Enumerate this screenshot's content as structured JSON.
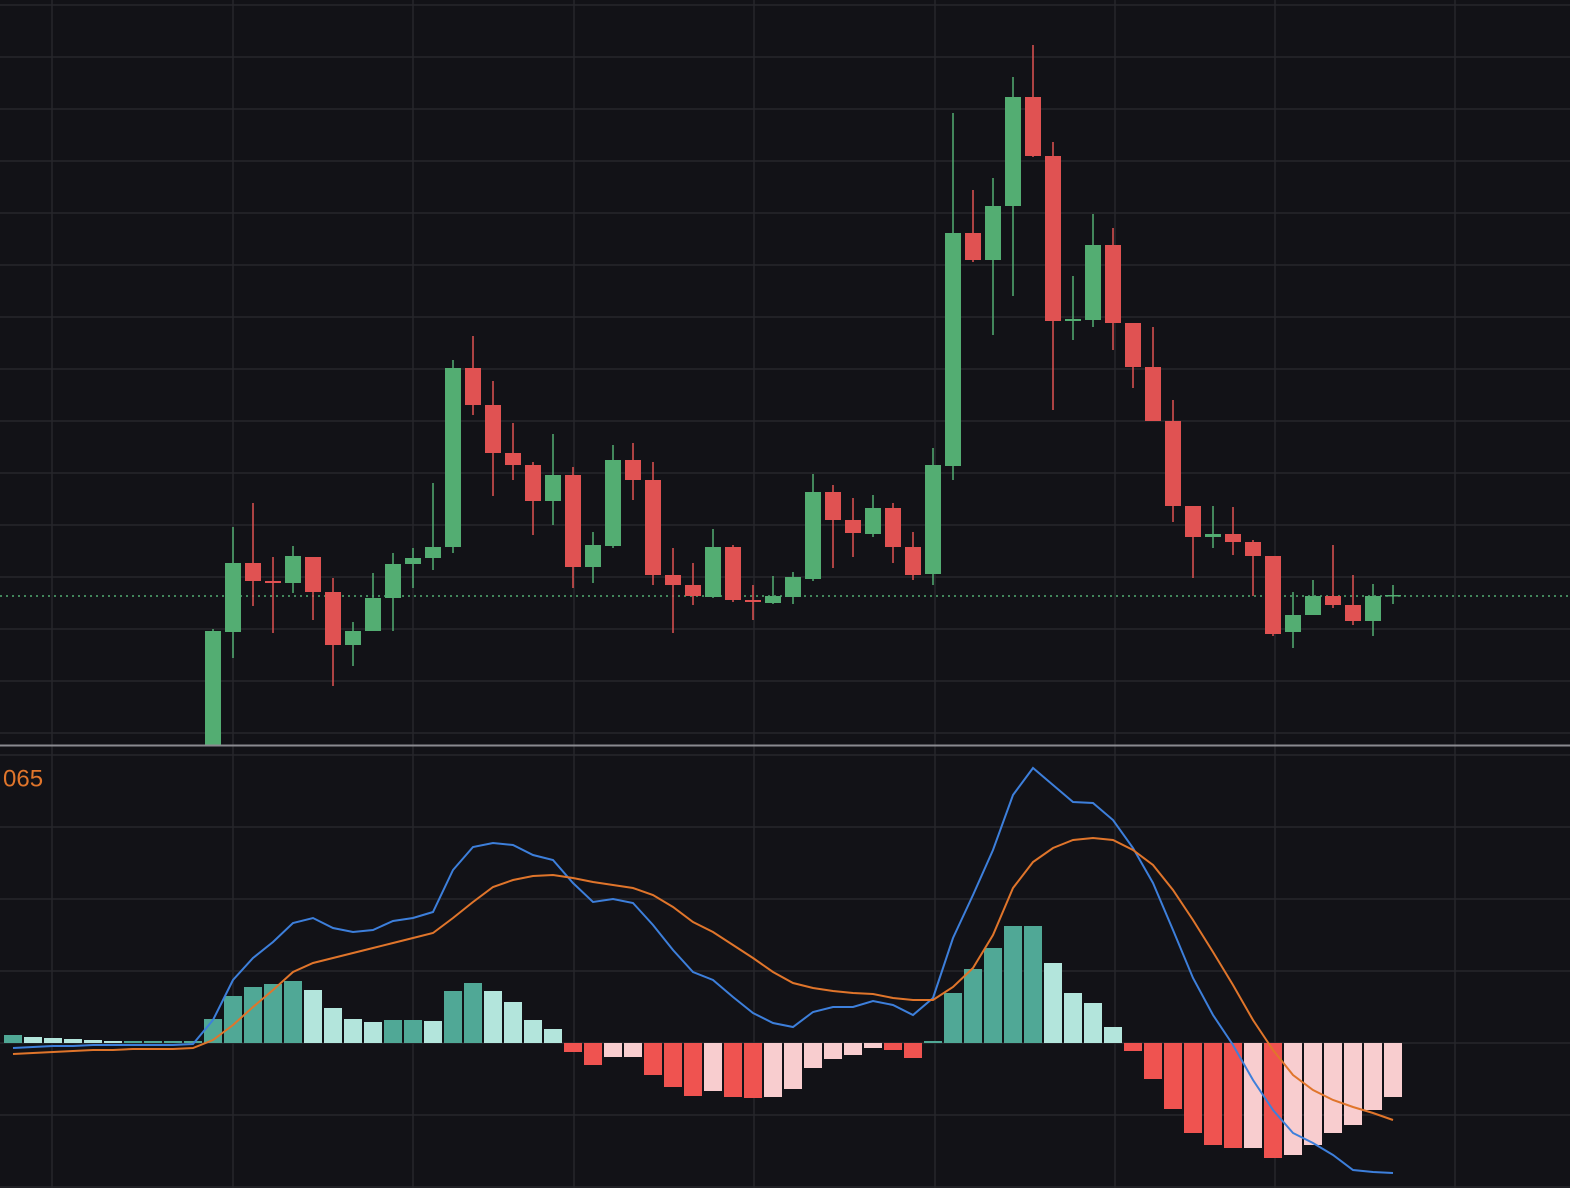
{
  "chart_data": [
    {
      "type": "candlestick",
      "open": [
        null,
        null,
        null,
        null,
        null,
        null,
        null,
        null,
        null,
        null,
        -12,
        101,
        170,
        152,
        150,
        176,
        141,
        88,
        102,
        135,
        169,
        175,
        186,
        365,
        328,
        280,
        268,
        232,
        258,
        166,
        187,
        273,
        253,
        158,
        148,
        136,
        186,
        133,
        130,
        136,
        154,
        241,
        213,
        199,
        225,
        186,
        159,
        267,
        500,
        473,
        527,
        636,
        577,
        412,
        413,
        488,
        410,
        366,
        312,
        227,
        196,
        199,
        191,
        177,
        101,
        118,
        137,
        128,
        112,
        137
      ],
      "high": [
        null,
        null,
        null,
        null,
        null,
        null,
        null,
        null,
        null,
        null,
        104,
        206,
        230,
        176,
        187,
        176,
        155,
        111,
        160,
        180,
        185,
        250,
        373,
        397,
        352,
        310,
        271,
        299,
        266,
        201,
        288,
        290,
        271,
        185,
        170,
        204,
        188,
        148,
        157,
        161,
        259,
        248,
        235,
        238,
        230,
        201,
        285,
        620,
        543,
        555,
        656,
        688,
        591,
        457,
        519,
        505,
        410,
        406,
        333,
        227,
        227,
        226,
        193,
        177,
        141,
        153,
        188,
        158,
        149,
        148
      ],
      "low": [
        null,
        null,
        null,
        null,
        null,
        null,
        null,
        null,
        null,
        null,
        -12,
        75,
        127,
        100,
        140,
        113,
        47,
        67,
        102,
        102,
        145,
        163,
        180,
        318,
        237,
        253,
        198,
        208,
        145,
        150,
        185,
        233,
        148,
        100,
        128,
        135,
        131,
        113,
        129,
        129,
        152,
        165,
        176,
        196,
        170,
        153,
        148,
        253,
        471,
        398,
        437,
        576,
        323,
        393,
        406,
        383,
        345,
        312,
        211,
        155,
        185,
        178,
        137,
        97,
        85,
        118,
        125,
        108,
        97,
        129
      ],
      "close": [
        null,
        null,
        null,
        null,
        null,
        null,
        null,
        null,
        null,
        null,
        102,
        170,
        152,
        150,
        177,
        141,
        88,
        102,
        135,
        169,
        175,
        186,
        365,
        328,
        280,
        268,
        232,
        258,
        166,
        188,
        273,
        253,
        158,
        148,
        137,
        186,
        133,
        131,
        137,
        156,
        241,
        213,
        200,
        225,
        186,
        158,
        268,
        500,
        473,
        527,
        636,
        577,
        412,
        414,
        488,
        410,
        366,
        312,
        227,
        196,
        199,
        191,
        177,
        99,
        118,
        137,
        128,
        112,
        137,
        138
      ],
      "up_color": "#53ad72",
      "down_color": "#e05252",
      "ylim": [
        -12,
        733
      ],
      "yticks": [
        0,
        52,
        104,
        156,
        208,
        260,
        312,
        364,
        416,
        468,
        520,
        572,
        624,
        676,
        728
      ],
      "grid": true,
      "last_price": 137,
      "last_price_color": "#53ad72"
    },
    {
      "type": "macd",
      "label": "065",
      "label_color": "#e0752b",
      "histogram": {
        "values": [
          8,
          6,
          5,
          4,
          3,
          2,
          2,
          2,
          2,
          2,
          24,
          47,
          56,
          59,
          62,
          53,
          35,
          24,
          21,
          23,
          23,
          22,
          52,
          60,
          52,
          41,
          23,
          14,
          -9,
          -22,
          -14,
          -14,
          -32,
          -44,
          -53,
          -48,
          -54,
          -55,
          -54,
          -46,
          -25,
          -16,
          -12,
          -5,
          -7,
          -15,
          2,
          50,
          74,
          95,
          117,
          117,
          80,
          50,
          40,
          16,
          -8,
          -36,
          -66,
          -90,
          -102,
          -105,
          -105,
          -115,
          -112,
          -102,
          -90,
          -82,
          -67,
          -54
        ],
        "colors": {
          "rise_above": "#50a896",
          "fall_above": "#b3e5dc",
          "fall_below": "#ef5350",
          "rise_below": "#f8cdcf"
        }
      },
      "series": [
        {
          "color": "#3d7fdb",
          "values": [
            -5,
            -4,
            -3,
            -3,
            -2,
            -2,
            -2,
            -2,
            -2,
            -1,
            23,
            63,
            85,
            101,
            120,
            125,
            115,
            111,
            113,
            122,
            125,
            131,
            173,
            196,
            200,
            198,
            188,
            183,
            160,
            141,
            144,
            140,
            118,
            93,
            71,
            63,
            46,
            30,
            20,
            16,
            31,
            36,
            36,
            42,
            38,
            28,
            45,
            105,
            148,
            193,
            248,
            275,
            258,
            241,
            240,
            223,
            195,
            160,
            113,
            65,
            28,
            -2,
            -37,
            -67,
            -90,
            -100,
            -112,
            -127,
            -129,
            -130
          ]
        },
        {
          "color": "#e0752b",
          "values": [
            -11,
            -10,
            -9,
            -8,
            -7,
            -7,
            -6,
            -6,
            -6,
            -5,
            3,
            18,
            36,
            53,
            71,
            80,
            85,
            90,
            95,
            100,
            105,
            110,
            125,
            141,
            156,
            163,
            167,
            168,
            165,
            161,
            158,
            155,
            148,
            136,
            121,
            111,
            98,
            85,
            71,
            60,
            55,
            52,
            50,
            49,
            45,
            43,
            43,
            56,
            75,
            108,
            155,
            181,
            195,
            203,
            205,
            203,
            193,
            178,
            153,
            123,
            91,
            58,
            23,
            -7,
            -32,
            -47,
            -57,
            -64,
            -70,
            -77
          ]
        }
      ],
      "ylim": [
        -145,
        297
      ],
      "yticks": [
        -144,
        -72,
        0,
        72,
        144,
        216,
        288
      ],
      "grid": true
    }
  ]
}
